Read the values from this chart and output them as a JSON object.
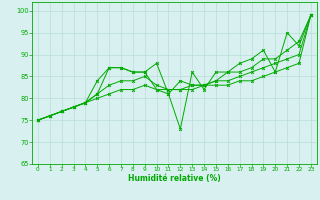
{
  "title": "",
  "xlabel": "Humidité relative (%)",
  "ylabel": "",
  "xlim": [
    -0.5,
    23.5
  ],
  "ylim": [
    65,
    102
  ],
  "yticks": [
    65,
    70,
    75,
    80,
    85,
    90,
    95,
    100
  ],
  "xticks": [
    0,
    1,
    2,
    3,
    4,
    5,
    6,
    7,
    8,
    9,
    10,
    11,
    12,
    13,
    14,
    15,
    16,
    17,
    18,
    19,
    20,
    21,
    22,
    23
  ],
  "bg_color": "#d8f0f0",
  "grid_color": "#b8ddd8",
  "line_color": "#00aa00",
  "series": [
    [
      75,
      76,
      77,
      78,
      79,
      81,
      87,
      87,
      86,
      86,
      88,
      81,
      73,
      86,
      82,
      86,
      86,
      88,
      89,
      91,
      86,
      95,
      92,
      99
    ],
    [
      75,
      76,
      77,
      78,
      79,
      84,
      87,
      87,
      86,
      86,
      82,
      81,
      84,
      83,
      83,
      84,
      86,
      86,
      87,
      89,
      89,
      91,
      93,
      99
    ],
    [
      75,
      76,
      77,
      78,
      79,
      81,
      83,
      84,
      84,
      85,
      83,
      82,
      82,
      83,
      83,
      84,
      84,
      85,
      86,
      87,
      88,
      89,
      90,
      99
    ],
    [
      75,
      76,
      77,
      78,
      79,
      80,
      81,
      82,
      82,
      83,
      82,
      82,
      82,
      82,
      83,
      83,
      83,
      84,
      84,
      85,
      86,
      87,
      88,
      99
    ]
  ]
}
